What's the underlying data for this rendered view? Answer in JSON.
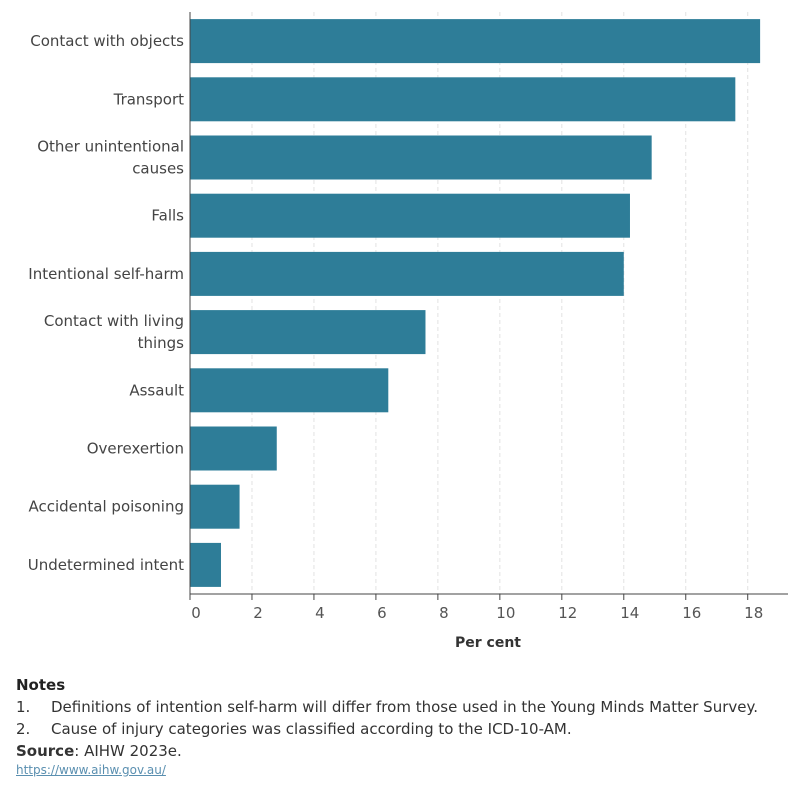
{
  "chart_data": {
    "type": "bar",
    "orientation": "horizontal",
    "categories": [
      [
        "Contact with objects"
      ],
      [
        "Transport"
      ],
      [
        "Other unintentional",
        "causes"
      ],
      [
        "Falls"
      ],
      [
        "Intentional self-harm"
      ],
      [
        "Contact with living",
        "things"
      ],
      [
        "Assault"
      ],
      [
        "Overexertion"
      ],
      [
        "Accidental poisoning"
      ],
      [
        "Undetermined intent"
      ]
    ],
    "values": [
      18.4,
      17.6,
      14.9,
      14.2,
      14.0,
      7.6,
      6.4,
      2.8,
      1.6,
      1.0
    ],
    "xlabel": "Per cent",
    "ylabel": "",
    "xlim": [
      0,
      19.3
    ],
    "ticks": [
      "0",
      "2",
      "4",
      "6",
      "8",
      "10",
      "12",
      "14",
      "16",
      "18"
    ],
    "grid": "vertical-dashed",
    "bar_color": "#2e7d98"
  },
  "footer": {
    "notes_title": "Notes",
    "notes": [
      {
        "num": "1.",
        "text": "Definitions of intention self-harm will differ from those used in the Young Minds Matter Survey."
      },
      {
        "num": "2.",
        "text": "Cause of injury categories was classified according to the ICD-10-AM."
      }
    ],
    "source_label": "Source",
    "source_text": ": AIHW 2023e.",
    "link": "https://www.aihw.gov.au/"
  }
}
